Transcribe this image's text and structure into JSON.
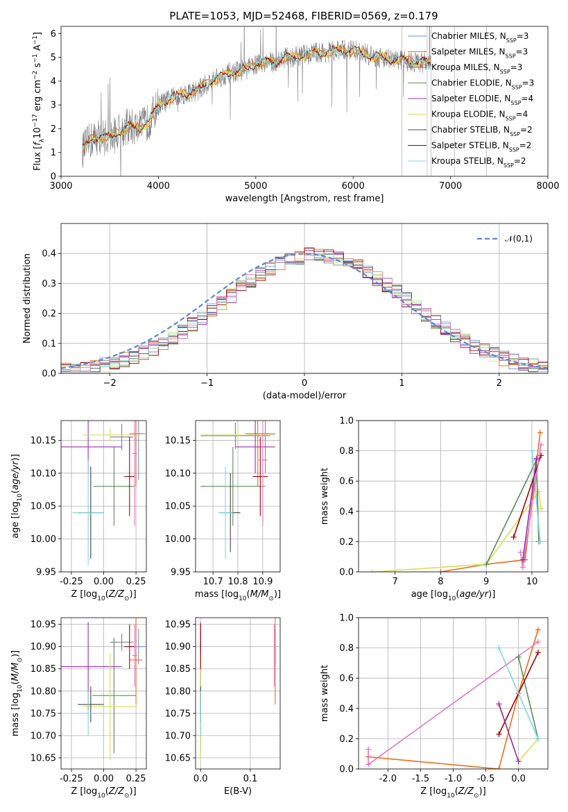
{
  "figure_title": "PLATE=1053, MJD=52468, FIBERID=0569, z=0.179",
  "colors": {
    "Chabrier MILES": "#6d8fd6",
    "Salpeter MILES": "#e76f1e",
    "Kroupa MILES": "#808080",
    "Chabrier ELODIE": "#5a8a5a",
    "Salpeter ELODIE": "#9b2fae",
    "Kroupa ELODIE": "#d4e157",
    "Chabrier STELIB": "#444444",
    "Salpeter STELIB": "#a00000",
    "Kroupa STELIB": "#7fd8d8",
    "gaussian": "#5b87d6",
    "pink": "#e377c2"
  },
  "chart_data": [
    {
      "id": "spectrum",
      "type": "line",
      "xlabel": "wavelength [Angstrom, rest frame]",
      "ylabel": "Flux [f_λ10^-17 erg cm^-2 s^-1 A^-1]",
      "xlim": [
        3000,
        8000
      ],
      "ylim": [
        0,
        6.3
      ],
      "xticks": [
        3000,
        4000,
        5000,
        6000,
        7000,
        8000
      ],
      "yticks": [
        0,
        1,
        2,
        3,
        4,
        5,
        6
      ],
      "legend_position": "upper right",
      "legend": [
        {
          "base": "Chabrier MILES, N",
          "sub": "SSP",
          "tail": "=3"
        },
        {
          "base": "Salpeter MILES, N",
          "sub": "SSP",
          "tail": "=3"
        },
        {
          "base": "Kroupa MILES, N",
          "sub": "SSP",
          "tail": "=3"
        },
        {
          "base": "Chabrier ELODIE, N",
          "sub": "SSP",
          "tail": "=3"
        },
        {
          "base": "Salpeter ELODIE, N",
          "sub": "SSP",
          "tail": "=4"
        },
        {
          "base": "Kroupa ELODIE, N",
          "sub": "SSP",
          "tail": "=4"
        },
        {
          "base": "Chabrier STELIB, N",
          "sub": "SSP",
          "tail": "=2"
        },
        {
          "base": "Salpeter STELIB, N",
          "sub": "SSP",
          "tail": "=2"
        },
        {
          "base": "Kroupa STELIB, N",
          "sub": "SSP",
          "tail": "=2"
        }
      ],
      "continuum": [
        [
          3220,
          1.1
        ],
        [
          3300,
          1.5
        ],
        [
          3400,
          1.7
        ],
        [
          3500,
          1.6
        ],
        [
          3600,
          1.9
        ],
        [
          3700,
          2.1
        ],
        [
          3800,
          2.0
        ],
        [
          3900,
          2.3
        ],
        [
          4000,
          3.0
        ],
        [
          4100,
          3.2
        ],
        [
          4200,
          3.4
        ],
        [
          4300,
          3.5
        ],
        [
          4400,
          3.6
        ],
        [
          4500,
          3.9
        ],
        [
          4600,
          4.1
        ],
        [
          4700,
          4.3
        ],
        [
          4800,
          4.4
        ],
        [
          4900,
          4.5
        ],
        [
          5000,
          4.7
        ],
        [
          5100,
          4.8
        ],
        [
          5200,
          4.8
        ],
        [
          5300,
          5.0
        ],
        [
          5400,
          5.0
        ],
        [
          5500,
          5.1
        ],
        [
          5600,
          5.2
        ],
        [
          5700,
          5.2
        ],
        [
          5800,
          5.25
        ],
        [
          5900,
          5.3
        ],
        [
          6000,
          5.3
        ],
        [
          6100,
          5.2
        ],
        [
          6200,
          5.0
        ],
        [
          6300,
          5.0
        ],
        [
          6400,
          4.9
        ],
        [
          6500,
          4.9
        ],
        [
          6600,
          4.8
        ],
        [
          6700,
          4.8
        ],
        [
          6800,
          4.7
        ]
      ]
    },
    {
      "id": "residuals",
      "type": "line",
      "xlabel": "(data-model)/error",
      "ylabel": "Normed distribution",
      "xlim": [
        -2.5,
        2.5
      ],
      "ylim": [
        0,
        0.5
      ],
      "xticks": [
        -2,
        -1,
        0,
        1,
        2
      ],
      "yticks": [
        0.0,
        0.1,
        0.2,
        0.3,
        0.4
      ],
      "legend_label": "𝒩(0,1)",
      "legend_position": "upper right"
    },
    {
      "id": "age_vs_Z",
      "type": "scatter",
      "xlabel": "Z [log10(Z/Z⊙)]",
      "ylabel": "age [log10(age/yr)]",
      "xlim": [
        -0.33,
        0.33
      ],
      "ylim": [
        9.95,
        10.18
      ],
      "xticks": [
        -0.25,
        0.0,
        0.25
      ],
      "yticks": [
        9.95,
        10.0,
        10.05,
        10.1,
        10.15
      ],
      "points": [
        {
          "s": "Chabrier MILES",
          "x": 0.27,
          "y": 10.16,
          "xe": 0.05,
          "ye": 0.07
        },
        {
          "s": "Salpeter MILES",
          "x": 0.25,
          "y": 10.16,
          "xe": 0.05,
          "ye": 0.08
        },
        {
          "s": "Kroupa MILES",
          "x": 0.14,
          "y": 10.155,
          "xe": 0.09,
          "ye": 0.02
        },
        {
          "s": "Chabrier ELODIE",
          "x": 0.08,
          "y": 10.08,
          "xe": 0.16,
          "ye": 0.06
        },
        {
          "s": "Salpeter ELODIE",
          "x": -0.12,
          "y": 10.14,
          "xe": 0.26,
          "ye": 0.04
        },
        {
          "s": "Kroupa ELODIE",
          "x": 0.05,
          "y": 10.158,
          "xe": 0.21,
          "ye": 0.01
        },
        {
          "s": "Chabrier STELIB",
          "x": -0.1,
          "y": 10.04,
          "xe": 0.1,
          "ye": 0.07
        },
        {
          "s": "Salpeter STELIB",
          "x": 0.2,
          "y": 10.095,
          "xe": 0.04,
          "ye": 0.06
        },
        {
          "s": "Kroupa STELIB",
          "x": -0.12,
          "y": 10.04,
          "xe": 0.12,
          "ye": 0.08
        },
        {
          "s": "pink",
          "x": 0.24,
          "y": 10.13,
          "xe": 0.02,
          "ye": 0.11
        }
      ]
    },
    {
      "id": "age_vs_mass",
      "type": "scatter",
      "xlabel": "mass [log10(M/M⊙)]",
      "ylabel": "",
      "xlim": [
        10.63,
        10.97
      ],
      "ylim": [
        9.95,
        10.18
      ],
      "xticks": [
        10.7,
        10.8,
        10.9
      ],
      "yticks": [
        9.95,
        10.0,
        10.05,
        10.1,
        10.15
      ],
      "points": [
        {
          "s": "Chabrier MILES",
          "x": 10.91,
          "y": 10.16,
          "xe": 0.04,
          "ye": 0.06
        },
        {
          "s": "Salpeter MILES",
          "x": 10.88,
          "y": 10.16,
          "xe": 0.05,
          "ye": 0.08
        },
        {
          "s": "Kroupa MILES",
          "x": 10.79,
          "y": 10.157,
          "xe": 0.14,
          "ye": 0.02
        },
        {
          "s": "Chabrier ELODIE",
          "x": 10.78,
          "y": 10.08,
          "xe": 0.13,
          "ye": 0.06
        },
        {
          "s": "Salpeter ELODIE",
          "x": 10.87,
          "y": 10.14,
          "xe": 0.08,
          "ye": 0.04
        },
        {
          "s": "Kroupa ELODIE",
          "x": 10.8,
          "y": 10.158,
          "xe": 0.15,
          "ye": 0.01
        },
        {
          "s": "Chabrier STELIB",
          "x": 10.77,
          "y": 10.04,
          "xe": 0.04,
          "ye": 0.06
        },
        {
          "s": "Salpeter STELIB",
          "x": 10.89,
          "y": 10.095,
          "xe": 0.03,
          "ye": 0.06
        },
        {
          "s": "Kroupa STELIB",
          "x": 10.75,
          "y": 10.04,
          "xe": 0.03,
          "ye": 0.07
        },
        {
          "s": "pink",
          "x": 10.9,
          "y": 10.12,
          "xe": 0.02,
          "ye": 0.1
        }
      ]
    },
    {
      "id": "weight_vs_age",
      "type": "line",
      "xlabel": "age [log10(age/yr)]",
      "ylabel": "mass weight",
      "xlim": [
        6.2,
        10.35
      ],
      "ylim": [
        0,
        1.0
      ],
      "xticks": [
        7,
        8,
        9,
        10
      ],
      "yticks": [
        0.0,
        0.2,
        0.4,
        0.6,
        0.8,
        1.0
      ],
      "series": [
        {
          "s": "Salpeter MILES",
          "pts": [
            [
              8.0,
              0.0
            ],
            [
              9.0,
              0.05
            ],
            [
              9.85,
              0.08
            ],
            [
              10.18,
              0.92
            ]
          ]
        },
        {
          "s": "Kroupa ELODIE",
          "pts": [
            [
              6.5,
              0.0
            ],
            [
              9.0,
              0.05
            ],
            [
              10.15,
              0.53
            ],
            [
              10.2,
              0.42
            ]
          ]
        },
        {
          "s": "Chabrier ELODIE",
          "pts": [
            [
              9.0,
              0.05
            ],
            [
              10.1,
              0.74
            ],
            [
              10.15,
              0.2
            ]
          ]
        },
        {
          "s": "Salpeter STELIB",
          "pts": [
            [
              9.6,
              0.23
            ],
            [
              10.2,
              0.77
            ]
          ]
        },
        {
          "s": "Kroupa STELIB",
          "pts": [
            [
              10.0,
              0.8
            ],
            [
              10.18,
              0.2
            ]
          ]
        },
        {
          "s": "pink",
          "pts": [
            [
              9.75,
              0.13
            ],
            [
              9.8,
              0.03
            ],
            [
              10.2,
              0.84
            ]
          ]
        },
        {
          "s": "Salpeter ELODIE",
          "pts": [
            [
              9.8,
              0.08
            ],
            [
              10.1,
              0.75
            ]
          ]
        }
      ]
    },
    {
      "id": "mass_vs_Z",
      "type": "scatter",
      "xlabel": "Z [log10(Z/Z⊙)]",
      "ylabel": "mass [log10(M/M⊙)]",
      "xlim": [
        -0.33,
        0.33
      ],
      "ylim": [
        10.625,
        10.965
      ],
      "xticks": [
        -0.25,
        0.0,
        0.25
      ],
      "yticks": [
        10.65,
        10.7,
        10.75,
        10.8,
        10.85,
        10.9,
        10.95
      ],
      "points": [
        {
          "s": "Chabrier MILES",
          "x": 0.27,
          "y": 10.9,
          "xe": 0.05,
          "ye": 0.04
        },
        {
          "s": "Salpeter MILES",
          "x": 0.25,
          "y": 10.87,
          "xe": 0.05,
          "ye": 0.1
        },
        {
          "s": "Kroupa MILES",
          "x": 0.14,
          "y": 10.91,
          "xe": 0.09,
          "ye": 0.02
        },
        {
          "s": "Chabrier ELODIE",
          "x": 0.08,
          "y": 10.79,
          "xe": 0.17,
          "ye": 0.13
        },
        {
          "s": "Salpeter ELODIE",
          "x": -0.12,
          "y": 10.855,
          "xe": 0.26,
          "ye": 0.1
        },
        {
          "s": "Kroupa ELODIE",
          "x": 0.05,
          "y": 10.765,
          "xe": 0.21,
          "ye": 0.12
        },
        {
          "s": "Chabrier STELIB",
          "x": -0.1,
          "y": 10.77,
          "xe": 0.1,
          "ye": 0.04
        },
        {
          "s": "Salpeter STELIB",
          "x": 0.2,
          "y": 10.9,
          "xe": 0.04,
          "ye": 0.05
        },
        {
          "s": "Kroupa STELIB",
          "x": -0.12,
          "y": 10.75,
          "xe": 0.11,
          "ye": 0.05
        },
        {
          "s": "pink",
          "x": 0.24,
          "y": 10.88,
          "xe": 0.02,
          "ye": 0.07
        }
      ]
    },
    {
      "id": "mass_vs_ebv",
      "type": "scatter",
      "xlabel": "E(B-V)",
      "ylabel": "",
      "xlim": [
        -0.01,
        0.16
      ],
      "ylim": [
        10.625,
        10.965
      ],
      "xticks": [
        0.0,
        0.1
      ],
      "yticks": [
        10.65,
        10.7,
        10.75,
        10.8,
        10.85,
        10.9,
        10.95
      ],
      "points": [
        {
          "s": "Chabrier MILES",
          "x": 0.15,
          "y": 10.9,
          "xe": 0.0,
          "ye": 0.04
        },
        {
          "s": "Salpeter MILES",
          "x": 0.15,
          "y": 10.87,
          "xe": 0.0,
          "ye": 0.1
        },
        {
          "s": "Kroupa MILES",
          "x": 0.0,
          "y": 10.91,
          "xe": 0.0,
          "ye": 0.02
        },
        {
          "s": "Chabrier ELODIE",
          "x": 0.0,
          "y": 10.79,
          "xe": 0.0,
          "ye": 0.13
        },
        {
          "s": "Salpeter ELODIE",
          "x": 0.0,
          "y": 10.855,
          "xe": 0.0,
          "ye": 0.1
        },
        {
          "s": "Kroupa ELODIE",
          "x": 0.0,
          "y": 10.765,
          "xe": 0.0,
          "ye": 0.12
        },
        {
          "s": "Chabrier STELIB",
          "x": 0.0,
          "y": 10.77,
          "xe": 0.0,
          "ye": 0.04
        },
        {
          "s": "Salpeter STELIB",
          "x": 0.0,
          "y": 10.9,
          "xe": 0.0,
          "ye": 0.05
        },
        {
          "s": "Kroupa STELIB",
          "x": 0.0,
          "y": 10.75,
          "xe": 0.0,
          "ye": 0.05
        },
        {
          "s": "pink",
          "x": 0.148,
          "y": 10.88,
          "xe": 0.0,
          "ye": 0.07
        }
      ]
    },
    {
      "id": "weight_vs_Z",
      "type": "line",
      "xlabel": "Z [log10(Z/Z⊙)]",
      "ylabel": "mass weight",
      "xlim": [
        -2.45,
        0.45
      ],
      "ylim": [
        0,
        1.0
      ],
      "xticks": [
        -2.0,
        -1.5,
        -1.0,
        -0.5,
        0.0
      ],
      "yticks": [
        0.0,
        0.2,
        0.4,
        0.6,
        0.8,
        1.0
      ],
      "series": [
        {
          "s": "Salpeter MILES",
          "pts": [
            [
              -2.3,
              0.08
            ],
            [
              -0.3,
              0.0
            ],
            [
              0.0,
              0.5
            ],
            [
              0.3,
              0.92
            ]
          ]
        },
        {
          "s": "pink",
          "pts": [
            [
              -2.3,
              0.13
            ],
            [
              -2.3,
              0.03
            ],
            [
              0.3,
              0.84
            ]
          ]
        },
        {
          "s": "Kroupa ELODIE",
          "pts": [
            [
              -0.3,
              0.42
            ],
            [
              0.0,
              0.05
            ],
            [
              0.3,
              0.2
            ]
          ]
        },
        {
          "s": "Chabrier ELODIE",
          "pts": [
            [
              0.0,
              0.74
            ],
            [
              0.3,
              0.2
            ]
          ]
        },
        {
          "s": "Salpeter STELIB",
          "pts": [
            [
              -0.3,
              0.23
            ],
            [
              0.3,
              0.77
            ]
          ]
        },
        {
          "s": "Kroupa STELIB",
          "pts": [
            [
              -0.3,
              0.8
            ],
            [
              0.3,
              0.2
            ]
          ]
        },
        {
          "s": "Salpeter ELODIE",
          "pts": [
            [
              -0.3,
              0.43
            ],
            [
              0.0,
              0.05
            ]
          ]
        }
      ]
    }
  ]
}
